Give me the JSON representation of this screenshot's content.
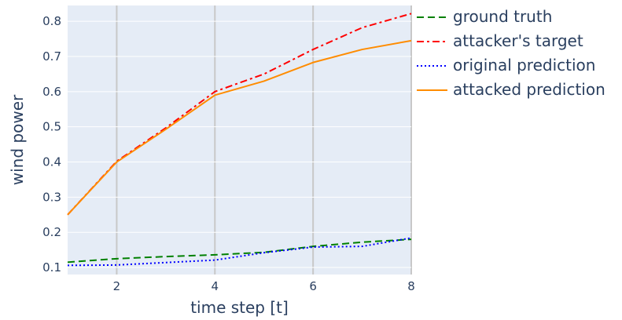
{
  "chart_data": {
    "type": "line",
    "xlabel": "time step [t]",
    "ylabel": "wind power",
    "xlim": [
      1,
      8
    ],
    "ylim": [
      0.08,
      0.845
    ],
    "xticks": [
      2,
      4,
      6,
      8
    ],
    "yticks": [
      0.1,
      0.2,
      0.3,
      0.4,
      0.5,
      0.6,
      0.7,
      0.8
    ],
    "ytick_labels": [
      "0.1",
      "0.2",
      "0.3",
      "0.4",
      "0.5",
      "0.6",
      "0.7",
      "0.8"
    ],
    "grid": true,
    "plot_background": "#e5ecf6",
    "legend_position": "right",
    "x": [
      1,
      2,
      3,
      4,
      5,
      6,
      7,
      8
    ],
    "series": [
      {
        "name": "ground truth",
        "color": "#008000",
        "dash": "dash",
        "values": [
          0.115,
          0.125,
          0.131,
          0.136,
          0.143,
          0.16,
          0.172,
          0.18
        ]
      },
      {
        "name": "attacker's target",
        "color": "#ff0000",
        "dash": "dashdot",
        "values": [
          0.25,
          0.402,
          0.497,
          0.6,
          0.65,
          0.72,
          0.782,
          0.822
        ]
      },
      {
        "name": "original prediction",
        "color": "#0000ff",
        "dash": "dot",
        "values": [
          0.106,
          0.107,
          0.114,
          0.121,
          0.142,
          0.158,
          0.16,
          0.184
        ]
      },
      {
        "name": "attacked prediction",
        "color": "#ff8c00",
        "dash": "solid",
        "values": [
          0.25,
          0.4,
          0.493,
          0.59,
          0.63,
          0.683,
          0.72,
          0.745
        ]
      }
    ]
  }
}
